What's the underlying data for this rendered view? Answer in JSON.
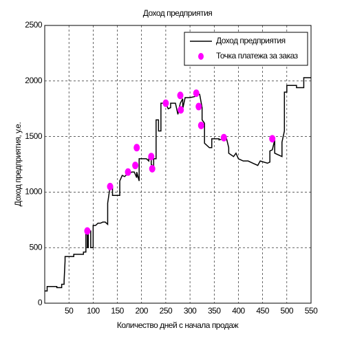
{
  "chart_data": {
    "type": "line",
    "title": "Доход предприятия",
    "xlabel": "Количество дней с начала продаж",
    "ylabel": "Доход предприятия, у.е.",
    "xlim": [
      0,
      550
    ],
    "xticks": [
      50,
      100,
      150,
      200,
      250,
      300,
      350,
      400,
      450,
      500,
      550
    ],
    "ylim": [
      0,
      2500
    ],
    "yticks": [
      0,
      500,
      1000,
      1500,
      2000,
      2500
    ],
    "grid": true,
    "legend": "upper right",
    "series": [
      {
        "name": "Доход предприятия",
        "type": "line",
        "color": "#000000",
        "x": [
          0,
          5,
          5,
          25,
          25,
          35,
          35,
          40,
          40,
          42,
          42,
          60,
          60,
          80,
          80,
          85,
          85,
          88,
          88,
          90,
          90,
          95,
          95,
          100,
          100,
          105,
          110,
          115,
          120,
          125,
          130,
          130,
          135,
          140,
          140,
          155,
          155,
          160,
          165,
          170,
          175,
          180,
          185,
          190,
          190,
          195,
          195,
          210,
          215,
          215,
          220,
          220,
          225,
          225,
          230,
          230,
          235,
          235,
          240,
          240,
          250,
          255,
          260,
          260,
          270,
          275,
          280,
          285,
          285,
          290,
          300,
          310,
          310,
          320,
          325,
          325,
          330,
          330,
          340,
          345,
          345,
          360,
          360,
          370,
          375,
          380,
          380,
          390,
          395,
          400,
          410,
          420,
          430,
          440,
          445,
          460,
          465,
          465,
          470,
          475,
          475,
          490,
          490,
          495,
          495,
          500,
          500,
          520,
          520,
          535,
          535,
          550
        ],
        "values": [
          110,
          110,
          150,
          150,
          140,
          140,
          170,
          170,
          200,
          380,
          420,
          420,
          440,
          440,
          460,
          460,
          620,
          620,
          500,
          500,
          650,
          650,
          500,
          500,
          700,
          700,
          720,
          720,
          730,
          730,
          710,
          900,
          1050,
          1050,
          970,
          970,
          1100,
          1150,
          1140,
          1160,
          1170,
          1180,
          1180,
          1130,
          1180,
          1100,
          1300,
          1300,
          1280,
          1320,
          1300,
          1250,
          1230,
          1300,
          1300,
          1650,
          1650,
          1550,
          1550,
          1800,
          1800,
          1750,
          1760,
          1800,
          1800,
          1700,
          1800,
          1840,
          1750,
          1850,
          1850,
          1860,
          1880,
          1880,
          1760,
          1650,
          1620,
          1440,
          1400,
          1400,
          1480,
          1480,
          1470,
          1480,
          1490,
          1400,
          1350,
          1320,
          1350,
          1300,
          1280,
          1280,
          1260,
          1240,
          1280,
          1260,
          1270,
          1370,
          1380,
          1470,
          1350,
          1320,
          1450,
          1550,
          1900,
          1900,
          1960,
          1960,
          1940,
          1940,
          2030,
          2030
        ]
      },
      {
        "name": "Точка платежа за заказ",
        "type": "scatter",
        "color": "#ff00ff",
        "x": [
          88,
          135,
          172,
          187,
          190,
          220,
          222,
          250,
          280,
          281,
          313,
          318,
          323,
          370,
          470
        ],
        "values": [
          650,
          1050,
          1180,
          1240,
          1400,
          1320,
          1210,
          1800,
          1870,
          1740,
          1890,
          1770,
          1600,
          1490,
          1480
        ]
      }
    ]
  }
}
